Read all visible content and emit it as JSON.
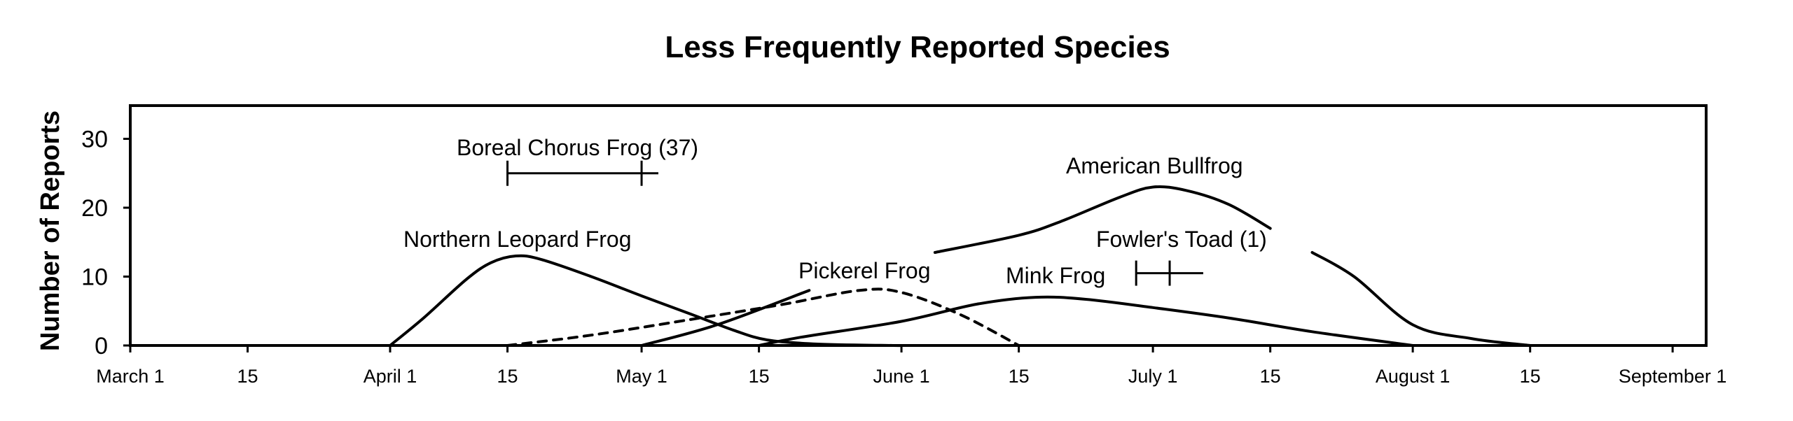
{
  "chart_data": {
    "type": "line",
    "title": "Less Frequently Reported Species",
    "ylabel": "Number of Reports",
    "xlabel": "",
    "ylim": [
      0,
      35
    ],
    "yticks": [
      0,
      10,
      20,
      30
    ],
    "grid": false,
    "x_tick_labels": [
      "March 1",
      "15",
      "April 1",
      "15",
      "May 1",
      "15",
      "June 1",
      "15",
      "July 1",
      "15",
      "August 1",
      "15",
      "September 1"
    ],
    "x_tick_dates": [
      "Mar 1",
      "Mar 15",
      "Apr 1",
      "Apr 15",
      "May 1",
      "May 15",
      "Jun 1",
      "Jun 15",
      "Jul 1",
      "Jul 15",
      "Aug 1",
      "Aug 15",
      "Sep 1"
    ],
    "series": [
      {
        "name": "Northern Leopard Frog",
        "style": "solid",
        "points": [
          [
            "Apr 1",
            0
          ],
          [
            "Apr 5",
            4
          ],
          [
            "Apr 10",
            9.5
          ],
          [
            "Apr 13",
            12
          ],
          [
            "Apr 16",
            13
          ],
          [
            "Apr 19",
            12.5
          ],
          [
            "Apr 25",
            10
          ],
          [
            "May 1",
            7.2
          ],
          [
            "May 7",
            4.5
          ],
          [
            "May 12",
            2.2
          ],
          [
            "May 16",
            0.8
          ],
          [
            "May 22",
            0.2
          ],
          [
            "May 31",
            0
          ],
          [
            "Jun 1",
            0
          ]
        ]
      },
      {
        "name": "Pickerel Frog",
        "style": "dashed",
        "points": [
          [
            "Apr 15",
            0
          ],
          [
            "Apr 25",
            1.5
          ],
          [
            "May 8",
            4
          ],
          [
            "May 18",
            6
          ],
          [
            "May 27",
            8
          ],
          [
            "Jun 1",
            7.7
          ],
          [
            "Jun 8",
            4.5
          ],
          [
            "Jun 15",
            0
          ]
        ]
      },
      {
        "name": "Mink Frog",
        "style": "solid",
        "points": [
          [
            "May 15",
            0
          ],
          [
            "May 20",
            1.2
          ],
          [
            "Jun 1",
            3.5
          ],
          [
            "Jun 10",
            6
          ],
          [
            "Jun 17",
            7
          ],
          [
            "Jun 23",
            6.7
          ],
          [
            "Jul 1",
            5.5
          ],
          [
            "Jul 10",
            4
          ],
          [
            "Jul 20",
            2
          ],
          [
            "Aug 1",
            0
          ]
        ]
      },
      {
        "name": "American Bullfrog",
        "segments": [
          [
            [
              "May 1",
              0
            ],
            [
              "May 10",
              3
            ],
            [
              "May 21",
              8
            ]
          ],
          [
            [
              "Jun 5",
              13.5
            ],
            [
              "Jun 15",
              16
            ],
            [
              "Jun 20",
              18
            ],
            [
              "Jun 27",
              21.5
            ],
            [
              "Jul 1",
              23
            ],
            [
              "Jul 5",
              22.5
            ],
            [
              "Jul 10",
              20.5
            ],
            [
              "Jul 15",
              17
            ]
          ],
          [
            [
              "Jul 20",
              13.5
            ],
            [
              "Jul 25",
              10
            ],
            [
              "Aug 1",
              3
            ],
            [
              "Aug 8",
              1
            ],
            [
              "Aug 15",
              0
            ]
          ]
        ]
      }
    ],
    "ranges": [
      {
        "label": "Boreal Chorus Frog (37)",
        "start": "Apr 15",
        "end": "May 3",
        "y": 25,
        "ticks": [
          "Apr 15",
          "May 1"
        ]
      },
      {
        "label": "Fowler's Toad (1)",
        "start": "Jun 29",
        "end": "Jul 7",
        "y": 10.5,
        "ticks": [
          "Jun 29",
          "Jul 3"
        ]
      }
    ],
    "labels": {
      "northern_leopard": "Northern Leopard Frog",
      "pickerel": "Pickerel Frog",
      "mink": "Mink Frog",
      "bullfrog": "American Bullfrog",
      "boreal": "Boreal Chorus Frog (37)",
      "fowlers": "Fowler's Toad (1)"
    }
  }
}
